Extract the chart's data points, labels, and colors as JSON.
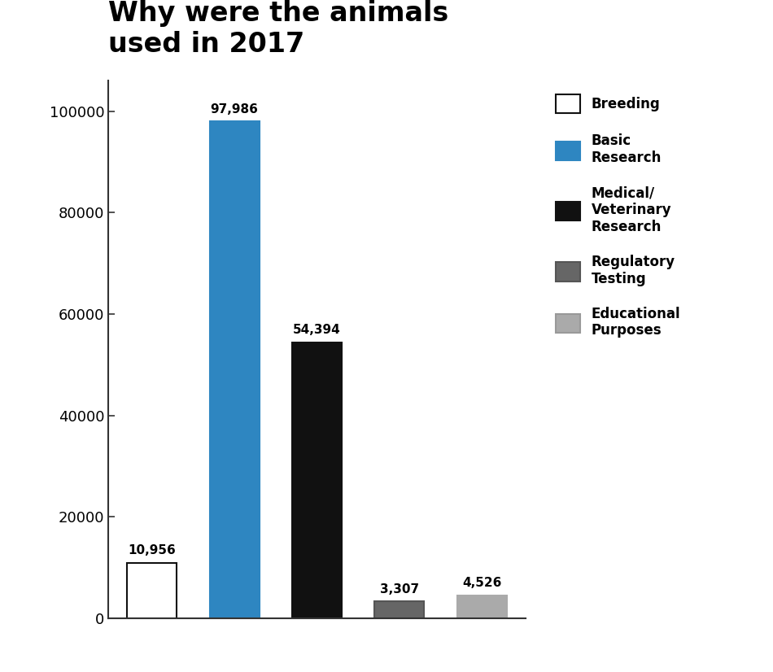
{
  "title": "Why were the animals\nused in 2017",
  "values": [
    10956,
    97986,
    54394,
    3307,
    4526
  ],
  "labels": [
    "10,956",
    "97,986",
    "54,394",
    "3,307",
    "4,526"
  ],
  "colors": [
    "#ffffff",
    "#2e86c1",
    "#111111",
    "#666666",
    "#aaaaaa"
  ],
  "edgecolors": [
    "#111111",
    "#2e86c1",
    "#111111",
    "#555555",
    "#aaaaaa"
  ],
  "legend_labels": [
    "Breeding",
    "Basic\nResearch",
    "Medical/\nVeterinary\nResearch",
    "Regulatory\nTesting",
    "Educational\nPurposes"
  ],
  "legend_colors": [
    "#ffffff",
    "#2e86c1",
    "#111111",
    "#666666",
    "#aaaaaa"
  ],
  "legend_edgecolors": [
    "#111111",
    "#2e86c1",
    "#111111",
    "#555555",
    "#999999"
  ],
  "ylim": [
    0,
    106000
  ],
  "yticks": [
    0,
    20000,
    40000,
    60000,
    80000,
    100000
  ],
  "ytick_labels": [
    "0",
    "20000",
    "40000",
    "60000",
    "80000",
    "100000"
  ],
  "background_color": "#ffffff",
  "title_fontsize": 24,
  "bar_width": 0.6
}
